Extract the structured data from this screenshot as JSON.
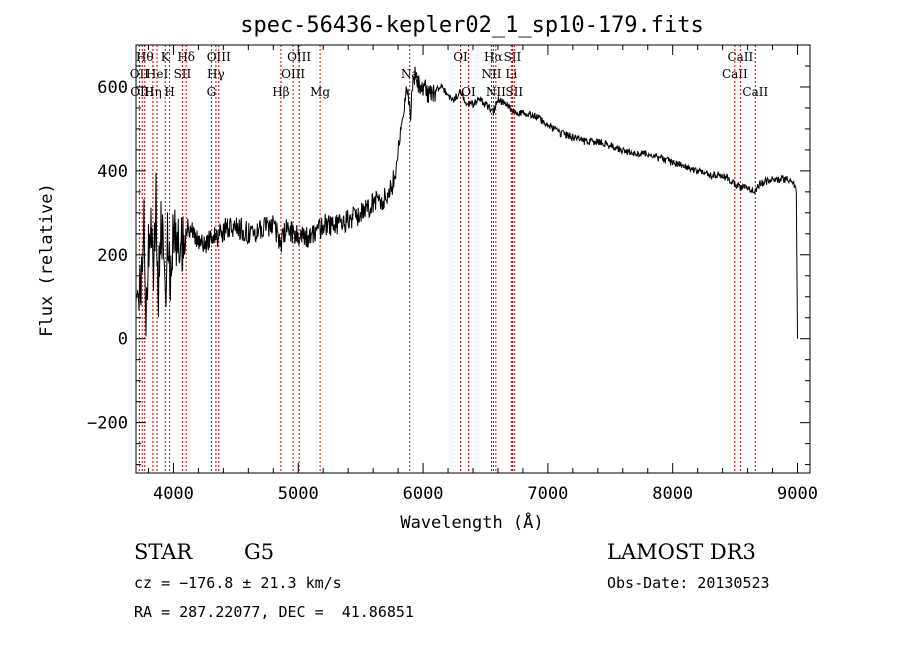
{
  "chart_data": {
    "type": "line",
    "title": "spec-56436-kepler02_1_sp10-179.fits",
    "xlabel": "Wavelength (Å)",
    "ylabel": "Flux (relative)",
    "xlim": [
      3700,
      9100
    ],
    "ylim": [
      -320,
      700
    ],
    "xticks": [
      4000,
      5000,
      6000,
      7000,
      8000,
      9000
    ],
    "yticks": [
      -200,
      0,
      200,
      400,
      600
    ],
    "series": [
      {
        "name": "flux",
        "x": [
          3700,
          3720,
          3740,
          3760,
          3780,
          3800,
          3820,
          3840,
          3860,
          3880,
          3900,
          3920,
          3940,
          3960,
          3980,
          4000,
          4050,
          4100,
          4150,
          4200,
          4250,
          4300,
          4350,
          4400,
          4500,
          4600,
          4700,
          4800,
          4861,
          4900,
          5000,
          5100,
          5200,
          5300,
          5400,
          5500,
          5600,
          5700,
          5750,
          5780,
          5800,
          5830,
          5850,
          5880,
          5900,
          5920,
          5950,
          6000,
          6050,
          6100,
          6150,
          6200,
          6250,
          6300,
          6350,
          6400,
          6450,
          6500,
          6563,
          6600,
          6650,
          6700,
          6750,
          6800,
          6900,
          7000,
          7100,
          7200,
          7300,
          7400,
          7500,
          7600,
          7700,
          7800,
          7900,
          8000,
          8100,
          8200,
          8300,
          8400,
          8450,
          8498,
          8542,
          8600,
          8662,
          8700,
          8800,
          8900,
          8950,
          8970,
          8990,
          9000
        ],
        "values": [
          100,
          160,
          110,
          300,
          50,
          230,
          250,
          160,
          330,
          120,
          260,
          280,
          160,
          270,
          130,
          270,
          200,
          270,
          250,
          240,
          220,
          250,
          240,
          260,
          270,
          250,
          260,
          270,
          230,
          260,
          250,
          240,
          270,
          270,
          280,
          300,
          320,
          340,
          360,
          400,
          440,
          520,
          560,
          600,
          520,
          640,
          610,
          600,
          580,
          590,
          600,
          580,
          570,
          590,
          560,
          560,
          570,
          560,
          540,
          570,
          560,
          550,
          540,
          540,
          530,
          510,
          490,
          480,
          470,
          470,
          460,
          450,
          440,
          440,
          430,
          420,
          410,
          400,
          390,
          390,
          380,
          370,
          360,
          360,
          350,
          370,
          380,
          380,
          380,
          370,
          350,
          0
        ]
      }
    ],
    "line_marks": [
      {
        "wl": 3727,
        "label": "OII",
        "row": 2
      },
      {
        "wl": 3750,
        "label": "OIII",
        "row": 3
      },
      {
        "wl": 3770,
        "label": "Hθ",
        "row": 1
      },
      {
        "wl": 3835,
        "label": "Hη",
        "row": 3
      },
      {
        "wl": 3869,
        "label": "HeI",
        "row": 2
      },
      {
        "wl": 3934,
        "label": "K",
        "row": 1
      },
      {
        "wl": 3969,
        "label": "H",
        "row": 3
      },
      {
        "wl": 4072,
        "label": "SII",
        "row": 2
      },
      {
        "wl": 4102,
        "label": "Hδ",
        "row": 1
      },
      {
        "wl": 4304,
        "label": "G",
        "row": 3
      },
      {
        "wl": 4340,
        "label": "Hγ",
        "row": 2
      },
      {
        "wl": 4363,
        "label": "OIII",
        "row": 1
      },
      {
        "wl": 4861,
        "label": "Hβ",
        "row": 3
      },
      {
        "wl": 4959,
        "label": "OIII",
        "row": 2
      },
      {
        "wl": 5007,
        "label": "OIII",
        "row": 1
      },
      {
        "wl": 5175,
        "label": "Mg",
        "row": 3
      },
      {
        "wl": 5893,
        "label": "Na",
        "row": 2
      },
      {
        "wl": 6300,
        "label": "OI",
        "row": 1
      },
      {
        "wl": 6364,
        "label": "OI",
        "row": 3
      },
      {
        "wl": 6548,
        "label": "NII",
        "row": 2
      },
      {
        "wl": 6563,
        "label": "Hα",
        "row": 1
      },
      {
        "wl": 6583,
        "label": "NII",
        "row": 3
      },
      {
        "wl": 6707,
        "label": "Li",
        "row": 2
      },
      {
        "wl": 6716,
        "label": "SII",
        "row": 1
      },
      {
        "wl": 6731,
        "label": "SII",
        "row": 3
      },
      {
        "wl": 8498,
        "label": "CaII",
        "row": 2
      },
      {
        "wl": 8542,
        "label": "CaII",
        "row": 1
      },
      {
        "wl": 8662,
        "label": "CaII",
        "row": 3
      }
    ]
  },
  "info": {
    "class": "STAR",
    "subclass": "G5",
    "survey": "LAMOST DR3",
    "cz": "cz = −176.8 ± 21.3 km/s",
    "obs_date": "Obs-Date: 20130523",
    "coords": "RA = 287.22077, DEC =  41.86851"
  }
}
